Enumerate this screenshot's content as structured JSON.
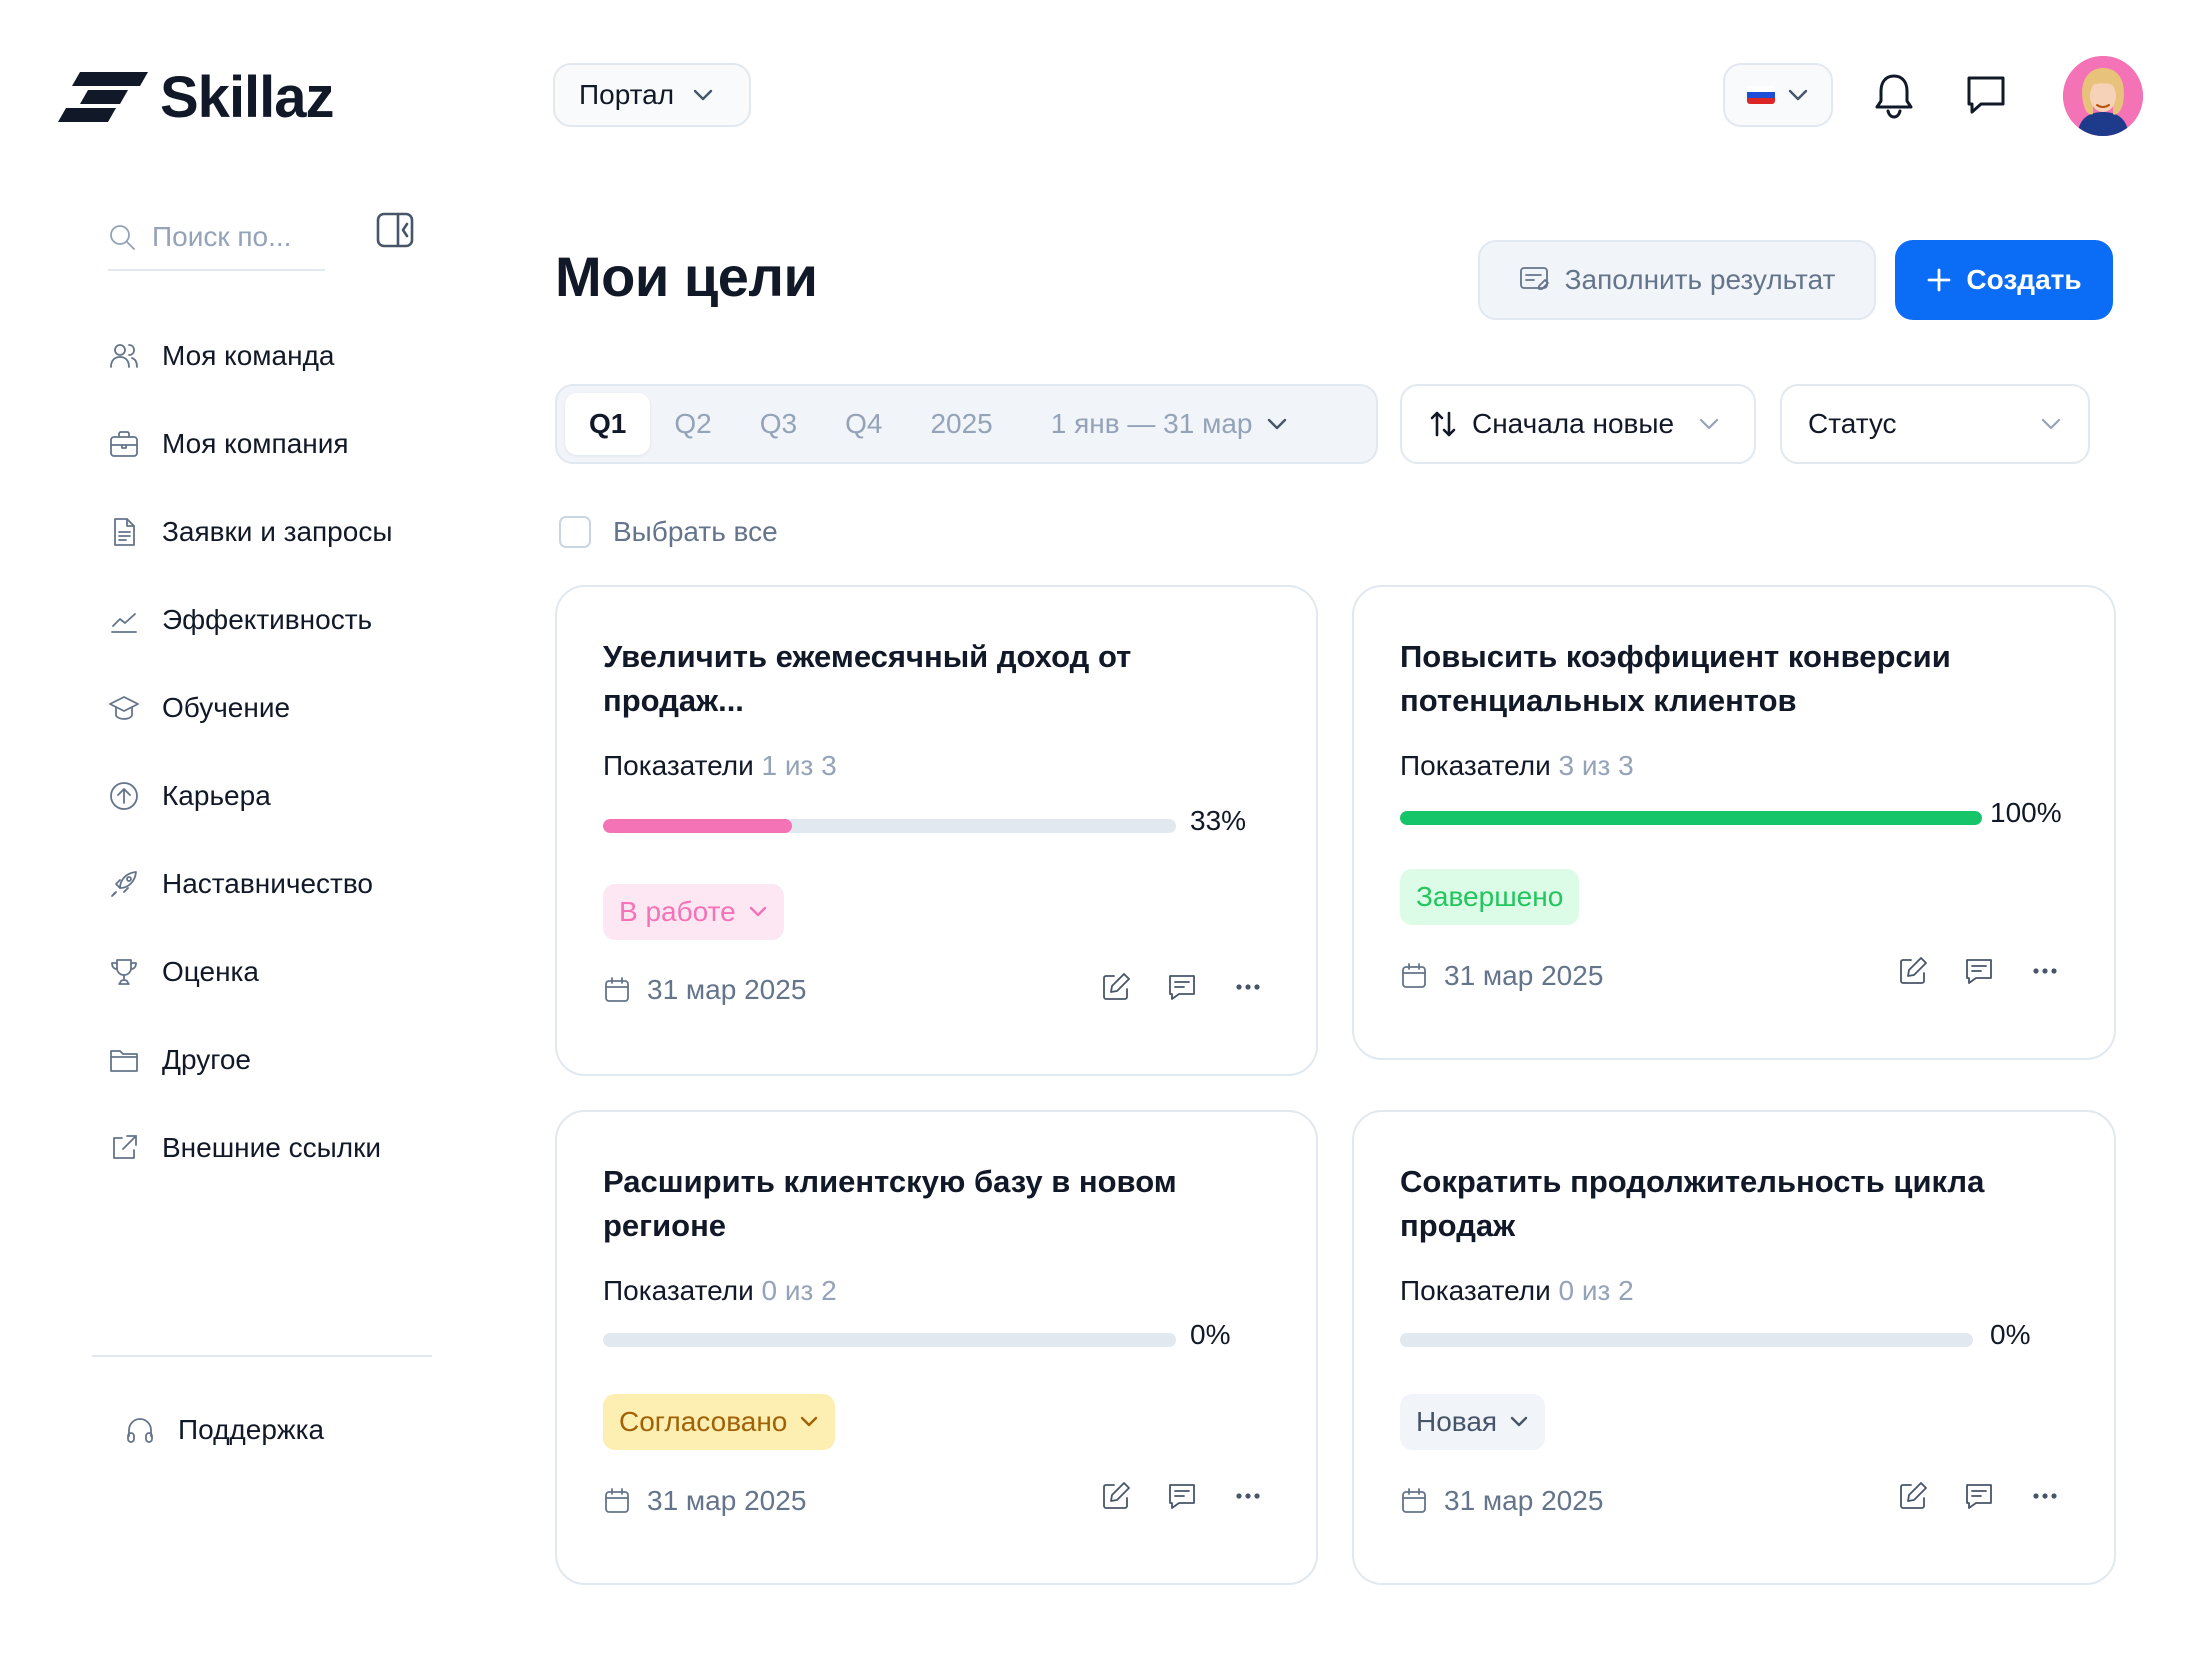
{
  "brand": {
    "name": "Skillaz"
  },
  "header": {
    "portal_label": "Портал",
    "language": {
      "flag_colors": [
        "#ffffff",
        "#1d4ed8",
        "#dc2626"
      ]
    },
    "icons": [
      "bell-icon",
      "chat-icon"
    ]
  },
  "sidebar": {
    "search_placeholder": "Поиск по...",
    "items": [
      {
        "label": "Моя команда",
        "icon": "team-icon"
      },
      {
        "label": "Моя компания",
        "icon": "briefcase-icon"
      },
      {
        "label": "Заявки и запросы",
        "icon": "document-icon"
      },
      {
        "label": "Эффективность",
        "icon": "trend-icon"
      },
      {
        "label": "Обучение",
        "icon": "graduation-cap-icon"
      },
      {
        "label": "Карьера",
        "icon": "arrow-up-circle-icon"
      },
      {
        "label": "Наставничество",
        "icon": "rocket-icon"
      },
      {
        "label": "Оценка",
        "icon": "trophy-icon"
      },
      {
        "label": "Другое",
        "icon": "folder-icon"
      },
      {
        "label": "Внешние ссылки",
        "icon": "external-link-icon"
      }
    ],
    "support_label": "Поддержка"
  },
  "main": {
    "title": "Мои цели",
    "fill_result_label": "Заполнить результат",
    "create_label": "Создать",
    "periods": [
      "Q1",
      "Q2",
      "Q3",
      "Q4",
      "2025"
    ],
    "active_period": "Q1",
    "date_range": "1 янв — 31 мар",
    "sort_label": "Сначала новые",
    "status_filter_label": "Статус",
    "select_all_label": "Выбрать все",
    "metrics_label": "Показатели",
    "goals": [
      {
        "title": "Увеличить ежемесячный доход от продаж...",
        "metrics_count": "1 из 3",
        "progress": 33,
        "progress_text": "33%",
        "progress_color": "#f472b6",
        "status": "В работе",
        "status_bg": "#fde7f3",
        "status_color": "#f472b6",
        "status_dropdown": true,
        "date": "31 мар 2025"
      },
      {
        "title": "Повысить коэффициент конверсии потенциальных клиентов",
        "metrics_count": "3 из 3",
        "progress": 100,
        "progress_text": "100%",
        "progress_color": "#16c46a",
        "status": "Завершено",
        "status_bg": "#dcfce7",
        "status_color": "#22c55e",
        "status_dropdown": false,
        "date": "31 мар 2025"
      },
      {
        "title": "Расширить клиентскую базу в новом регионе",
        "metrics_count": "0 из 2",
        "progress": 0,
        "progress_text": "0%",
        "progress_color": "#cbd5e1",
        "status": "Согласовано",
        "status_bg": "#fdeeb2",
        "status_color": "#a16207",
        "status_dropdown": true,
        "date": "31 мар 2025"
      },
      {
        "title": "Сократить продолжительность цикла продаж",
        "metrics_count": "0 из 2",
        "progress": 0,
        "progress_text": "0%",
        "progress_color": "#cbd5e1",
        "status": "Новая",
        "status_bg": "#f1f5f9",
        "status_color": "#475569",
        "status_dropdown": true,
        "date": "31 мар 2025"
      }
    ]
  }
}
